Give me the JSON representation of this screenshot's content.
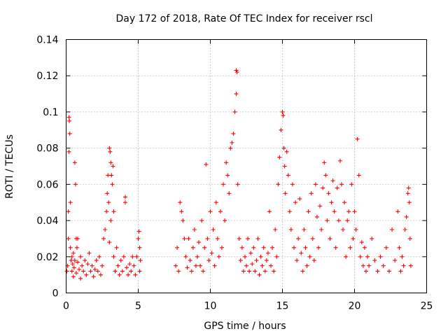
{
  "chart_data": {
    "type": "scatter",
    "title": "Day 172 of 2018, Rate Of TEC Index for receiver rscl",
    "xlabel": "GPS time / hours",
    "ylabel": "ROTI / TECUs",
    "xlim": [
      0,
      25
    ],
    "ylim": [
      0,
      0.14
    ],
    "xticks": [
      0,
      5,
      10,
      15,
      20,
      25
    ],
    "yticks": [
      0,
      0.02,
      0.04,
      0.06,
      0.08,
      0.1,
      0.12,
      0.14
    ],
    "xtick_labels": [
      "0",
      "5",
      "10",
      "15",
      "20",
      "25"
    ],
    "ytick_labels": [
      "0",
      "0.02",
      "0.04",
      "0.06",
      "0.08",
      "0.1",
      "0.12",
      "0.14"
    ],
    "grid": true,
    "marker": "+",
    "color": "#ff0000",
    "series": [
      {
        "name": "ROTI",
        "points": [
          [
            0.05,
            0.012
          ],
          [
            0.1,
            0.015
          ],
          [
            0.15,
            0.03
          ],
          [
            0.15,
            0.045
          ],
          [
            0.2,
            0.097
          ],
          [
            0.22,
            0.095
          ],
          [
            0.2,
            0.078
          ],
          [
            0.25,
            0.088
          ],
          [
            0.3,
            0.05
          ],
          [
            0.3,
            0.025
          ],
          [
            0.35,
            0.018
          ],
          [
            0.4,
            0.012
          ],
          [
            0.4,
            0.02
          ],
          [
            0.45,
            0.016
          ],
          [
            0.5,
            0.009
          ],
          [
            0.5,
            0.022
          ],
          [
            0.55,
            0.014
          ],
          [
            0.6,
            0.018
          ],
          [
            0.6,
            0.072
          ],
          [
            0.65,
            0.06
          ],
          [
            0.7,
            0.03
          ],
          [
            0.7,
            0.011
          ],
          [
            0.75,
            0.025
          ],
          [
            0.8,
            0.017
          ],
          [
            0.8,
            0.03
          ],
          [
            0.9,
            0.013
          ],
          [
            1.0,
            0.02
          ],
          [
            1.0,
            0.008
          ],
          [
            1.1,
            0.015
          ],
          [
            1.2,
            0.012
          ],
          [
            1.3,
            0.018
          ],
          [
            1.4,
            0.01
          ],
          [
            1.5,
            0.016
          ],
          [
            1.6,
            0.022
          ],
          [
            1.7,
            0.012
          ],
          [
            1.8,
            0.015
          ],
          [
            1.9,
            0.009
          ],
          [
            2.0,
            0.013
          ],
          [
            2.1,
            0.018
          ],
          [
            2.2,
            0.012
          ],
          [
            2.3,
            0.02
          ],
          [
            2.4,
            0.01
          ],
          [
            2.5,
            0.015
          ],
          [
            2.6,
            0.03
          ],
          [
            2.7,
            0.035
          ],
          [
            2.8,
            0.045
          ],
          [
            2.85,
            0.055
          ],
          [
            2.9,
            0.065
          ],
          [
            2.95,
            0.05
          ],
          [
            3.0,
            0.08
          ],
          [
            3.05,
            0.078
          ],
          [
            3.1,
            0.072
          ],
          [
            3.15,
            0.065
          ],
          [
            3.2,
            0.06
          ],
          [
            3.25,
            0.07
          ],
          [
            3.1,
            0.04
          ],
          [
            3.0,
            0.028
          ],
          [
            3.3,
            0.045
          ],
          [
            3.3,
            0.02
          ],
          [
            3.4,
            0.012
          ],
          [
            3.5,
            0.025
          ],
          [
            3.6,
            0.015
          ],
          [
            3.7,
            0.01
          ],
          [
            3.8,
            0.018
          ],
          [
            3.9,
            0.012
          ],
          [
            4.0,
            0.02
          ],
          [
            4.1,
            0.053
          ],
          [
            4.1,
            0.05
          ],
          [
            4.2,
            0.014
          ],
          [
            4.3,
            0.01
          ],
          [
            4.4,
            0.016
          ],
          [
            4.5,
            0.012
          ],
          [
            4.6,
            0.02
          ],
          [
            4.7,
            0.015
          ],
          [
            4.8,
            0.01
          ],
          [
            4.9,
            0.02
          ],
          [
            5.0,
            0.03
          ],
          [
            5.05,
            0.034
          ],
          [
            5.1,
            0.025
          ],
          [
            5.15,
            0.018
          ],
          [
            5.1,
            0.012
          ],
          [
            7.6,
            0.015
          ],
          [
            7.7,
            0.025
          ],
          [
            7.8,
            0.012
          ],
          [
            7.9,
            0.05
          ],
          [
            8.0,
            0.045
          ],
          [
            8.1,
            0.04
          ],
          [
            8.2,
            0.03
          ],
          [
            8.3,
            0.02
          ],
          [
            8.4,
            0.014
          ],
          [
            8.5,
            0.03
          ],
          [
            8.6,
            0.018
          ],
          [
            8.7,
            0.012
          ],
          [
            8.8,
            0.025
          ],
          [
            8.9,
            0.035
          ],
          [
            9.0,
            0.015
          ],
          [
            9.1,
            0.02
          ],
          [
            9.2,
            0.028
          ],
          [
            9.3,
            0.015
          ],
          [
            9.4,
            0.04
          ],
          [
            9.5,
            0.012
          ],
          [
            9.6,
            0.025
          ],
          [
            9.7,
            0.071
          ],
          [
            9.8,
            0.03
          ],
          [
            9.9,
            0.018
          ],
          [
            10.0,
            0.045
          ],
          [
            10.1,
            0.022
          ],
          [
            10.2,
            0.035
          ],
          [
            10.3,
            0.015
          ],
          [
            10.4,
            0.05
          ],
          [
            10.5,
            0.03
          ],
          [
            10.6,
            0.02
          ],
          [
            10.7,
            0.045
          ],
          [
            10.8,
            0.025
          ],
          [
            10.9,
            0.06
          ],
          [
            11.0,
            0.04
          ],
          [
            11.1,
            0.072
          ],
          [
            11.2,
            0.065
          ],
          [
            11.3,
            0.055
          ],
          [
            11.4,
            0.08
          ],
          [
            11.5,
            0.083
          ],
          [
            11.6,
            0.088
          ],
          [
            11.7,
            0.1
          ],
          [
            11.8,
            0.123
          ],
          [
            11.85,
            0.122
          ],
          [
            11.8,
            0.11
          ],
          [
            11.9,
            0.06
          ],
          [
            12.0,
            0.03
          ],
          [
            12.1,
            0.018
          ],
          [
            12.2,
            0.025
          ],
          [
            12.3,
            0.012
          ],
          [
            12.4,
            0.02
          ],
          [
            12.5,
            0.015
          ],
          [
            12.6,
            0.03
          ],
          [
            12.7,
            0.012
          ],
          [
            12.8,
            0.022
          ],
          [
            12.9,
            0.016
          ],
          [
            13.0,
            0.025
          ],
          [
            13.1,
            0.012
          ],
          [
            13.2,
            0.018
          ],
          [
            13.3,
            0.03
          ],
          [
            13.4,
            0.01
          ],
          [
            13.5,
            0.02
          ],
          [
            13.6,
            0.015
          ],
          [
            13.7,
            0.025
          ],
          [
            13.8,
            0.012
          ],
          [
            13.9,
            0.018
          ],
          [
            14.0,
            0.022
          ],
          [
            14.1,
            0.045
          ],
          [
            14.2,
            0.015
          ],
          [
            14.3,
            0.025
          ],
          [
            14.4,
            0.012
          ],
          [
            14.5,
            0.035
          ],
          [
            14.6,
            0.02
          ],
          [
            14.7,
            0.06
          ],
          [
            14.8,
            0.075
          ],
          [
            14.9,
            0.09
          ],
          [
            15.0,
            0.1
          ],
          [
            15.05,
            0.098
          ],
          [
            15.1,
            0.08
          ],
          [
            15.15,
            0.07
          ],
          [
            15.2,
            0.055
          ],
          [
            15.3,
            0.078
          ],
          [
            15.4,
            0.065
          ],
          [
            15.5,
            0.045
          ],
          [
            15.6,
            0.035
          ],
          [
            15.7,
            0.06
          ],
          [
            15.8,
            0.025
          ],
          [
            15.9,
            0.05
          ],
          [
            16.0,
            0.018
          ],
          [
            16.1,
            0.03
          ],
          [
            16.2,
            0.052
          ],
          [
            16.3,
            0.022
          ],
          [
            16.4,
            0.012
          ],
          [
            16.5,
            0.035
          ],
          [
            16.6,
            0.025
          ],
          [
            16.7,
            0.015
          ],
          [
            16.8,
            0.045
          ],
          [
            16.9,
            0.02
          ],
          [
            17.0,
            0.055
          ],
          [
            17.1,
            0.03
          ],
          [
            17.2,
            0.018
          ],
          [
            17.3,
            0.06
          ],
          [
            17.4,
            0.042
          ],
          [
            17.5,
            0.025
          ],
          [
            17.6,
            0.048
          ],
          [
            17.7,
            0.035
          ],
          [
            17.8,
            0.058
          ],
          [
            17.9,
            0.072
          ],
          [
            18.0,
            0.065
          ],
          [
            18.1,
            0.04
          ],
          [
            18.2,
            0.055
          ],
          [
            18.3,
            0.03
          ],
          [
            18.4,
            0.05
          ],
          [
            18.5,
            0.062
          ],
          [
            18.6,
            0.045
          ],
          [
            18.7,
            0.025
          ],
          [
            18.8,
            0.058
          ],
          [
            18.9,
            0.04
          ],
          [
            19.0,
            0.073
          ],
          [
            19.1,
            0.06
          ],
          [
            19.2,
            0.035
          ],
          [
            19.3,
            0.05
          ],
          [
            19.4,
            0.02
          ],
          [
            19.5,
            0.04
          ],
          [
            19.6,
            0.045
          ],
          [
            19.7,
            0.025
          ],
          [
            19.8,
            0.06
          ],
          [
            19.9,
            0.03
          ],
          [
            20.0,
            0.045
          ],
          [
            20.1,
            0.035
          ],
          [
            20.2,
            0.085
          ],
          [
            20.3,
            0.065
          ],
          [
            20.4,
            0.02
          ],
          [
            20.5,
            0.028
          ],
          [
            20.6,
            0.015
          ],
          [
            20.7,
            0.025
          ],
          [
            20.8,
            0.012
          ],
          [
            20.9,
            0.02
          ],
          [
            21.0,
            0.015
          ],
          [
            21.2,
            0.03
          ],
          [
            21.4,
            0.018
          ],
          [
            21.6,
            0.012
          ],
          [
            21.8,
            0.02
          ],
          [
            22.0,
            0.015
          ],
          [
            22.2,
            0.025
          ],
          [
            22.4,
            0.012
          ],
          [
            22.6,
            0.035
          ],
          [
            22.8,
            0.018
          ],
          [
            23.0,
            0.045
          ],
          [
            23.1,
            0.025
          ],
          [
            23.2,
            0.012
          ],
          [
            23.3,
            0.02
          ],
          [
            23.4,
            0.015
          ],
          [
            23.5,
            0.035
          ],
          [
            23.6,
            0.042
          ],
          [
            23.7,
            0.055
          ],
          [
            23.75,
            0.058
          ],
          [
            23.8,
            0.05
          ],
          [
            23.85,
            0.03
          ],
          [
            23.9,
            0.015
          ]
        ]
      }
    ]
  }
}
